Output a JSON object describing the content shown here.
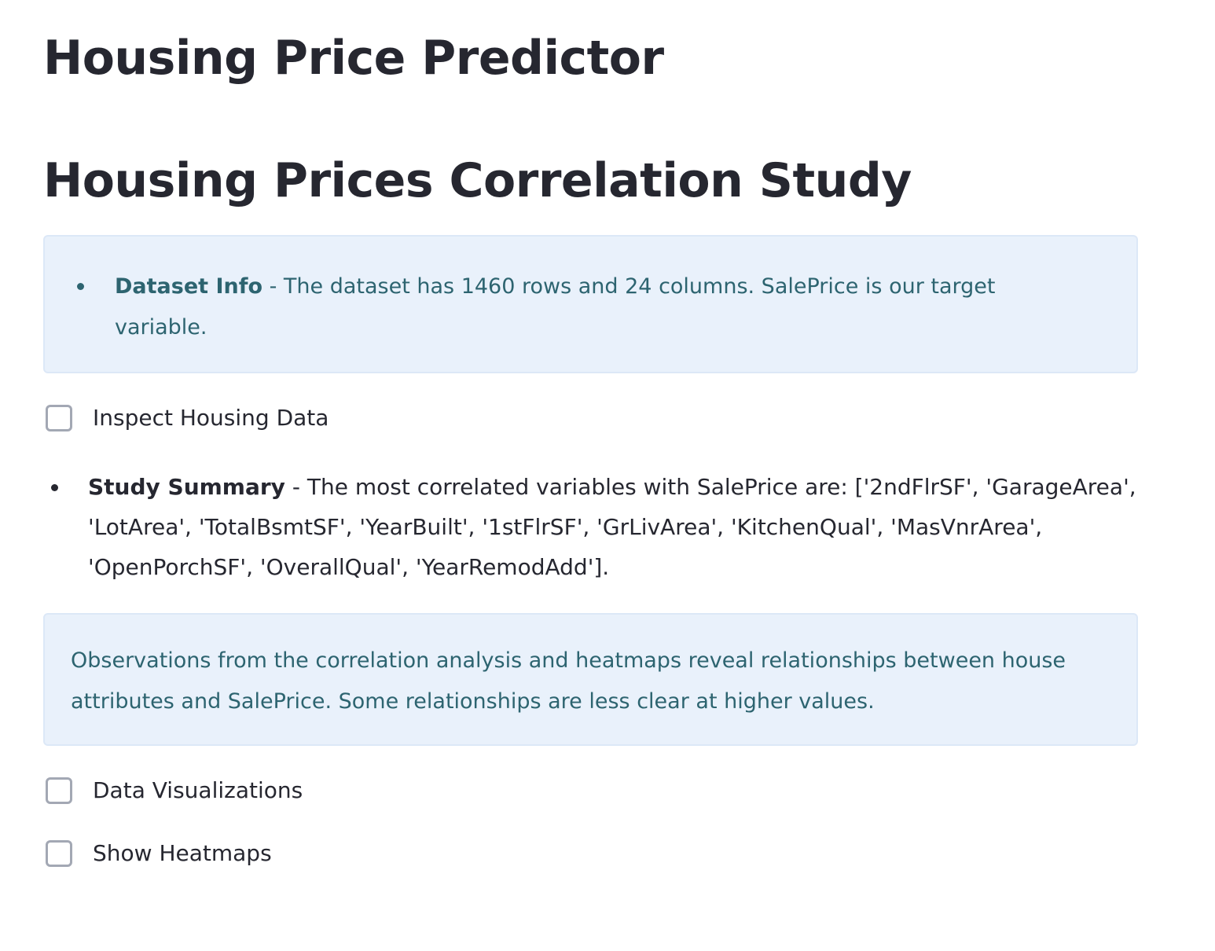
{
  "header": {
    "title": "Housing Price Predictor",
    "subtitle": "Housing Prices Correlation Study"
  },
  "dataset_info": {
    "label": "Dataset Info",
    "text": " - The dataset has 1460 rows and 24 columns. SalePrice is our target variable."
  },
  "checkboxes": [
    {
      "label": "Inspect Housing Data",
      "checked": false
    },
    {
      "label": "Data Visualizations",
      "checked": false
    },
    {
      "label": "Show Heatmaps",
      "checked": false
    }
  ],
  "study_summary": {
    "label": "Study Summary",
    "text": " - The most correlated variables with SalePrice are: ['2ndFlrSF', 'GarageArea', 'LotArea', 'TotalBsmtSF', 'YearBuilt', '1stFlrSF', 'GrLivArea', 'KitchenQual', 'MasVnrArea', 'OpenPorchSF', 'OverallQual', 'YearRemodAdd']."
  },
  "observations": {
    "text": "Observations from the correlation analysis and heatmaps reveal relationships between house attributes and SalePrice. Some relationships are less clear at higher values."
  },
  "colors": {
    "info_background": "#e9f1fb",
    "info_text": "#2d6470",
    "heading_text": "#262730"
  }
}
